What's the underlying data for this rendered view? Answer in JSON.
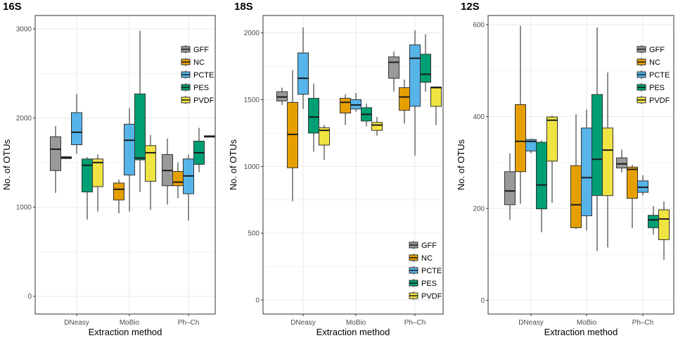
{
  "figure_kind": "grouped box plots of OTU counts",
  "chart_data": [
    {
      "type": "box",
      "title": "16S",
      "xlabel": "Extraction method",
      "ylabel": "No. of OTUs",
      "ylim": [
        -200,
        3150
      ],
      "yticks": [
        0,
        1000,
        2000,
        3000
      ],
      "ytick_labels": [
        "0",
        "1000",
        "2000",
        "3000"
      ],
      "categories": [
        "DNeasy",
        "MoBio",
        "Ph–Ch"
      ],
      "legend_position": "top-right",
      "series": [
        {
          "name": "GFF",
          "boxes": [
            {
              "category": "DNeasy",
              "min": 1160,
              "q1": 1410,
              "median": 1650,
              "q3": 1790,
              "max": 1910
            },
            null,
            {
              "category": "Ph–Ch",
              "min": 1030,
              "q1": 1240,
              "median": 1410,
              "q3": 1590,
              "max": 1770
            }
          ]
        },
        {
          "name": "NC",
          "boxes": [
            {
              "category": "DNeasy",
              "min": 1540,
              "q1": 1545,
              "median": 1555,
              "q3": 1565,
              "max": 1570
            },
            {
              "category": "MoBio",
              "min": 930,
              "q1": 1080,
              "median": 1200,
              "q3": 1270,
              "max": 1310
            },
            {
              "category": "Ph–Ch",
              "min": 1100,
              "q1": 1240,
              "median": 1280,
              "q3": 1400,
              "max": 1500
            }
          ]
        },
        {
          "name": "PCTE",
          "boxes": [
            {
              "category": "DNeasy",
              "min": 1600,
              "q1": 1700,
              "median": 1840,
              "q3": 2060,
              "max": 2270
            },
            {
              "category": "MoBio",
              "min": 950,
              "q1": 1360,
              "median": 1750,
              "q3": 1930,
              "max": 2110
            },
            {
              "category": "Ph–Ch",
              "min": 850,
              "q1": 1150,
              "median": 1350,
              "q3": 1540,
              "max": 1590
            }
          ]
        },
        {
          "name": "PES",
          "boxes": [
            {
              "category": "DNeasy",
              "min": 860,
              "q1": 1170,
              "median": 1470,
              "q3": 1540,
              "max": 1560
            },
            {
              "category": "MoBio",
              "min": 1170,
              "q1": 1530,
              "median": 1550,
              "q3": 2270,
              "max": 2980
            },
            {
              "category": "Ph–Ch",
              "min": 1390,
              "q1": 1480,
              "median": 1610,
              "q3": 1740,
              "max": 1890
            }
          ]
        },
        {
          "name": "PVDF",
          "boxes": [
            {
              "category": "DNeasy",
              "min": 950,
              "q1": 1230,
              "median": 1500,
              "q3": 1540,
              "max": 1590
            },
            {
              "category": "MoBio",
              "min": 970,
              "q1": 1290,
              "median": 1610,
              "q3": 1690,
              "max": 1810
            },
            {
              "category": "Ph–Ch",
              "min": 1785,
              "q1": 1785,
              "median": 1795,
              "q3": 1800,
              "max": 1805
            }
          ]
        }
      ]
    },
    {
      "type": "box",
      "title": "18S",
      "xlabel": "Extraction method",
      "ylabel": "No. of OTUs",
      "ylim": [
        -105,
        2130
      ],
      "yticks": [
        0,
        500,
        1000,
        1500,
        2000
      ],
      "ytick_labels": [
        "0",
        "500",
        "1000",
        "1500",
        "2000"
      ],
      "categories": [
        "DNeasy",
        "MoBio",
        "Ph–Ch"
      ],
      "legend_position": "bottom-right",
      "series": [
        {
          "name": "GFF",
          "boxes": [
            {
              "category": "DNeasy",
              "min": 1460,
              "q1": 1490,
              "median": 1520,
              "q3": 1560,
              "max": 1590
            },
            null,
            {
              "category": "Ph–Ch",
              "min": 1560,
              "q1": 1660,
              "median": 1780,
              "q3": 1820,
              "max": 1860
            }
          ]
        },
        {
          "name": "NC",
          "boxes": [
            {
              "category": "DNeasy",
              "min": 740,
              "q1": 990,
              "median": 1240,
              "q3": 1480,
              "max": 1720
            },
            {
              "category": "MoBio",
              "min": 1310,
              "q1": 1400,
              "median": 1480,
              "q3": 1510,
              "max": 1540
            },
            {
              "category": "Ph–Ch",
              "min": 1320,
              "q1": 1420,
              "median": 1520,
              "q3": 1590,
              "max": 1650
            }
          ]
        },
        {
          "name": "PCTE",
          "boxes": [
            {
              "category": "DNeasy",
              "min": 1430,
              "q1": 1540,
              "median": 1660,
              "q3": 1850,
              "max": 2040
            },
            {
              "category": "MoBio",
              "min": 1410,
              "q1": 1430,
              "median": 1460,
              "q3": 1500,
              "max": 1550
            },
            {
              "category": "Ph–Ch",
              "min": 1080,
              "q1": 1450,
              "median": 1810,
              "q3": 1910,
              "max": 2020
            }
          ]
        },
        {
          "name": "PES",
          "boxes": [
            {
              "category": "DNeasy",
              "min": 1110,
              "q1": 1250,
              "median": 1370,
              "q3": 1510,
              "max": 1620
            },
            {
              "category": "MoBio",
              "min": 1300,
              "q1": 1340,
              "median": 1390,
              "q3": 1440,
              "max": 1470
            },
            {
              "category": "Ph–Ch",
              "min": 1560,
              "q1": 1630,
              "median": 1690,
              "q3": 1840,
              "max": 1990
            }
          ]
        },
        {
          "name": "PVDF",
          "boxes": [
            {
              "category": "DNeasy",
              "min": 1050,
              "q1": 1160,
              "median": 1270,
              "q3": 1290,
              "max": 1310
            },
            {
              "category": "MoBio",
              "min": 1230,
              "q1": 1270,
              "median": 1310,
              "q3": 1330,
              "max": 1370
            },
            {
              "category": "Ph–Ch",
              "min": 1310,
              "q1": 1450,
              "median": 1590,
              "q3": 1595,
              "max": 1600
            }
          ]
        }
      ]
    },
    {
      "type": "box",
      "title": "12S",
      "xlabel": "Extraction method",
      "ylabel": "No. of OTUs",
      "ylim": [
        -30,
        620
      ],
      "yticks": [
        0,
        200,
        400,
        600
      ],
      "ytick_labels": [
        "0",
        "200",
        "400",
        "600"
      ],
      "categories": [
        "DNeasy",
        "MoBio",
        "Ph–Ch"
      ],
      "legend_position": "top-right",
      "series": [
        {
          "name": "GFF",
          "boxes": [
            {
              "category": "DNeasy",
              "min": 175,
              "q1": 208,
              "median": 238,
              "q3": 280,
              "max": 320
            },
            null,
            {
              "category": "Ph–Ch",
              "min": 278,
              "q1": 288,
              "median": 297,
              "q3": 310,
              "max": 328
            }
          ]
        },
        {
          "name": "NC",
          "boxes": [
            {
              "category": "DNeasy",
              "min": 210,
              "q1": 280,
              "median": 346,
              "q3": 426,
              "max": 598
            },
            {
              "category": "MoBio",
              "min": 155,
              "q1": 158,
              "median": 208,
              "q3": 293,
              "max": 405
            },
            {
              "category": "Ph–Ch",
              "min": 157,
              "q1": 222,
              "median": 285,
              "q3": 290,
              "max": 295
            }
          ]
        },
        {
          "name": "PCTE",
          "boxes": [
            {
              "category": "DNeasy",
              "min": 320,
              "q1": 325,
              "median": 346,
              "q3": 350,
              "max": 352
            },
            {
              "category": "MoBio",
              "min": 152,
              "q1": 184,
              "median": 267,
              "q3": 375,
              "max": 415
            },
            {
              "category": "Ph–Ch",
              "min": 228,
              "q1": 235,
              "median": 246,
              "q3": 260,
              "max": 272
            }
          ]
        },
        {
          "name": "PES",
          "boxes": [
            {
              "category": "DNeasy",
              "min": 148,
              "q1": 199,
              "median": 251,
              "q3": 344,
              "max": 348
            },
            {
              "category": "MoBio",
              "min": 107,
              "q1": 228,
              "median": 307,
              "q3": 448,
              "max": 594
            },
            {
              "category": "Ph–Ch",
              "min": 143,
              "q1": 158,
              "median": 175,
              "q3": 185,
              "max": 205
            }
          ]
        },
        {
          "name": "PVDF",
          "boxes": [
            {
              "category": "DNeasy",
              "min": 212,
              "q1": 303,
              "median": 392,
              "q3": 399,
              "max": 402
            },
            {
              "category": "MoBio",
              "min": 115,
              "q1": 228,
              "median": 327,
              "q3": 375,
              "max": 496
            },
            {
              "category": "Ph–Ch",
              "min": 88,
              "q1": 132,
              "median": 177,
              "q3": 197,
              "max": 215
            }
          ]
        }
      ]
    }
  ],
  "colors": {
    "GFF": "#999999",
    "NC": "#E69F00",
    "PCTE": "#56B4E9",
    "PES": "#009E73",
    "PVDF": "#F0E442",
    "panel_border": "#333333",
    "grid": "#ebebeb"
  }
}
